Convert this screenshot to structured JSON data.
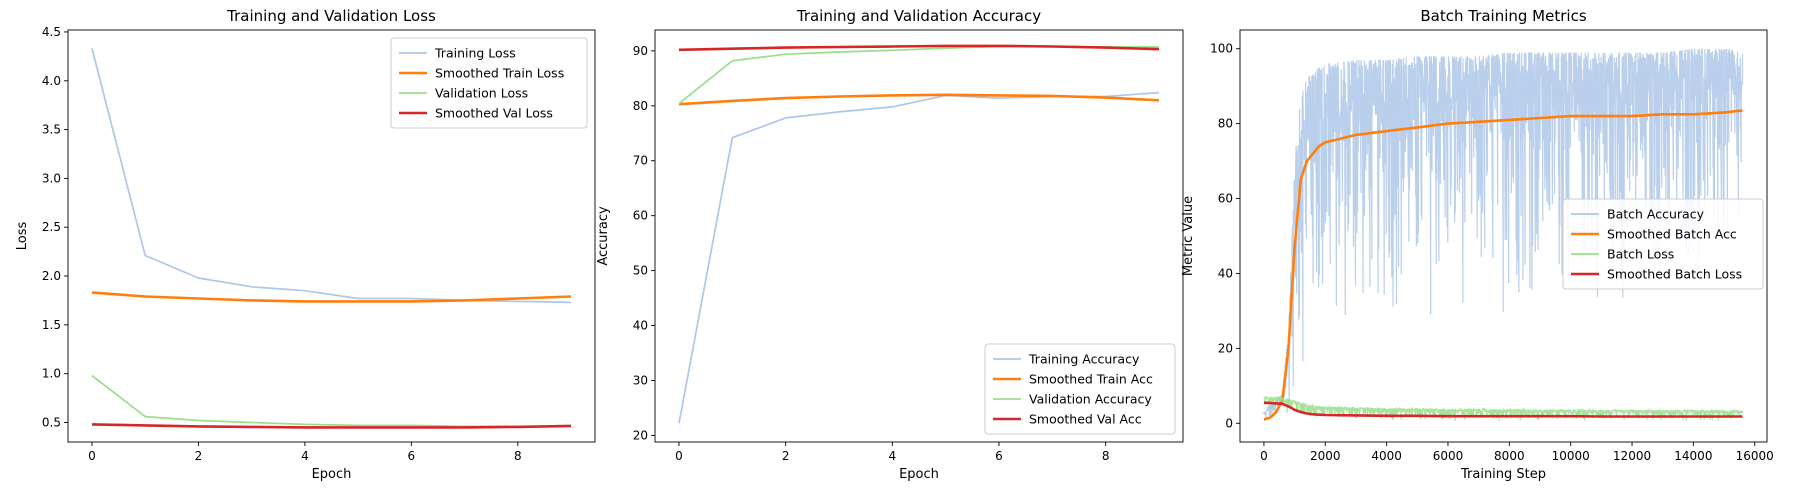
{
  "chart_data": [
    {
      "type": "line",
      "title": "Training and Validation Loss",
      "xlabel": "Epoch",
      "ylabel": "Loss",
      "xlim": [
        -0.45,
        9.45
      ],
      "ylim": [
        0.3,
        4.52
      ],
      "xticks": [
        0,
        2,
        4,
        6,
        8
      ],
      "xtick_labels": [
        "0",
        "2",
        "4",
        "6",
        "8"
      ],
      "yticks": [
        0.5,
        1.0,
        1.5,
        2.0,
        2.5,
        3.0,
        3.5,
        4.0,
        4.5
      ],
      "ytick_labels": [
        "0.5",
        "1.0",
        "1.5",
        "2.0",
        "2.5",
        "3.0",
        "3.5",
        "4.0",
        "4.5"
      ],
      "grid": false,
      "legend_position": "top-right",
      "x": [
        0,
        1,
        2,
        3,
        4,
        5,
        6,
        7,
        8,
        9
      ],
      "series": [
        {
          "name": "Training Loss",
          "color": "#aec7e8",
          "values": [
            4.33,
            2.21,
            1.98,
            1.89,
            1.85,
            1.77,
            1.77,
            1.75,
            1.74,
            1.73
          ]
        },
        {
          "name": "Smoothed Train Loss",
          "color": "#ff7f0e",
          "values": [
            1.83,
            1.79,
            1.77,
            1.75,
            1.74,
            1.74,
            1.74,
            1.75,
            1.77,
            1.79
          ]
        },
        {
          "name": "Validation Loss",
          "color": "#98df8a",
          "values": [
            0.98,
            0.56,
            0.52,
            0.5,
            0.48,
            0.47,
            0.47,
            0.46,
            0.46,
            0.46
          ]
        },
        {
          "name": "Smoothed Val Loss",
          "color": "#d62728",
          "values": [
            0.48,
            0.47,
            0.46,
            0.455,
            0.45,
            0.45,
            0.45,
            0.45,
            0.455,
            0.465
          ]
        }
      ]
    },
    {
      "type": "line",
      "title": "Training and Validation Accuracy",
      "xlabel": "Epoch",
      "ylabel": "Accuracy",
      "xlim": [
        -0.45,
        9.45
      ],
      "ylim": [
        18.8,
        93.8
      ],
      "xticks": [
        0,
        2,
        4,
        6,
        8
      ],
      "xtick_labels": [
        "0",
        "2",
        "4",
        "6",
        "8"
      ],
      "yticks": [
        20,
        30,
        40,
        50,
        60,
        70,
        80,
        90
      ],
      "ytick_labels": [
        "20",
        "30",
        "40",
        "50",
        "60",
        "70",
        "80",
        "90"
      ],
      "grid": false,
      "legend_position": "bottom-right",
      "x": [
        0,
        1,
        2,
        3,
        4,
        5,
        6,
        7,
        8,
        9
      ],
      "series": [
        {
          "name": "Training Accuracy",
          "color": "#aec7e8",
          "values": [
            22.2,
            74.2,
            77.8,
            78.9,
            79.8,
            81.9,
            81.4,
            81.7,
            81.7,
            82.4
          ]
        },
        {
          "name": "Smoothed Train Acc",
          "color": "#ff7f0e",
          "values": [
            80.3,
            80.9,
            81.4,
            81.7,
            81.9,
            82.0,
            81.9,
            81.8,
            81.5,
            81.0
          ]
        },
        {
          "name": "Validation Accuracy",
          "color": "#98df8a",
          "values": [
            80.4,
            88.2,
            89.4,
            89.8,
            90.1,
            90.5,
            90.8,
            90.8,
            90.7,
            90.7
          ]
        },
        {
          "name": "Smoothed Val Acc",
          "color": "#d62728",
          "values": [
            90.2,
            90.4,
            90.6,
            90.7,
            90.8,
            90.9,
            90.9,
            90.8,
            90.6,
            90.3
          ]
        }
      ]
    },
    {
      "type": "line",
      "title": "Batch Training Metrics",
      "xlabel": "Training Step",
      "ylabel": "Metric Value",
      "xlim": [
        -780,
        16400
      ],
      "ylim": [
        -5,
        105
      ],
      "xticks": [
        0,
        2000,
        4000,
        6000,
        8000,
        10000,
        12000,
        14000,
        16000
      ],
      "xtick_labels": [
        "0",
        "2000",
        "4000",
        "6000",
        "8000",
        "10000",
        "12000",
        "14000",
        "16000"
      ],
      "yticks": [
        0,
        20,
        40,
        60,
        80,
        100
      ],
      "ytick_labels": [
        "0",
        "20",
        "40",
        "60",
        "80",
        "100"
      ],
      "grid": false,
      "legend_position": "center-right",
      "x": [
        0,
        200,
        400,
        600,
        800,
        1000,
        1200,
        1400,
        1600,
        1800,
        2000,
        3000,
        4000,
        5000,
        6000,
        7000,
        8000,
        9000,
        10000,
        11000,
        12000,
        13000,
        14000,
        15000,
        15600
      ],
      "series": [
        {
          "name": "Batch Accuracy",
          "color": "#aec7e8",
          "band": true,
          "min": [
            0,
            0,
            0,
            0,
            2,
            5,
            10,
            12,
            12,
            14,
            16,
            20,
            25,
            22,
            28,
            25,
            28,
            30,
            32,
            28,
            32,
            32,
            35,
            33,
            33
          ],
          "max": [
            3,
            5,
            6,
            8,
            25,
            70,
            88,
            92,
            94,
            95,
            96,
            97,
            97,
            98,
            98,
            98,
            99,
            99,
            99,
            99,
            99,
            99,
            100,
            100,
            99
          ]
        },
        {
          "name": "Smoothed Batch Acc",
          "color": "#ff7f0e",
          "values": [
            1,
            1.5,
            3,
            6,
            20,
            47,
            65,
            70,
            72,
            74,
            75,
            77,
            78,
            79,
            80,
            80.5,
            81,
            81.5,
            82,
            82,
            82,
            82.5,
            82.5,
            83,
            83.5
          ]
        },
        {
          "name": "Batch Loss",
          "color": "#98df8a",
          "band": true,
          "min": [
            3,
            3.5,
            3.5,
            3,
            2.5,
            2,
            1.5,
            1.2,
            1,
            1,
            0.8,
            0.8,
            0.7,
            0.7,
            0.6,
            0.6,
            0.6,
            0.6,
            0.5,
            0.5,
            0.5,
            0.5,
            0.5,
            0.5,
            0.5
          ],
          "max": [
            7,
            7,
            7,
            7,
            6.5,
            6,
            5.5,
            5,
            4.8,
            4.5,
            4.5,
            4.2,
            4,
            4,
            3.8,
            3.8,
            3.8,
            3.6,
            3.6,
            3.6,
            3.5,
            3.5,
            3.5,
            3.5,
            3.5
          ]
        },
        {
          "name": "Smoothed Batch Loss",
          "color": "#d62728",
          "values": [
            5.5,
            5.4,
            5.3,
            5.2,
            4.5,
            3.6,
            3,
            2.6,
            2.4,
            2.3,
            2.2,
            2.1,
            2.0,
            2.0,
            1.9,
            1.9,
            1.9,
            1.9,
            1.9,
            1.8,
            1.8,
            1.8,
            1.8,
            1.8,
            1.8
          ]
        }
      ]
    }
  ]
}
